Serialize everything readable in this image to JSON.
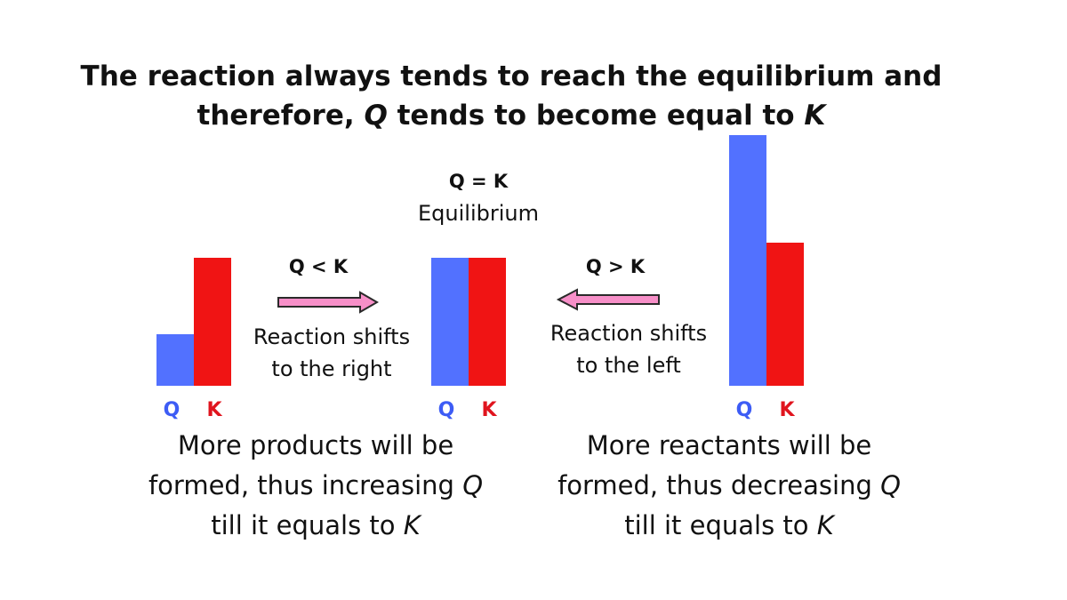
{
  "title": {
    "line1": "The reaction always tends to reach the equilibrium and",
    "line2_prefix": "therefore, ",
    "line2_q": "Q",
    "line2_mid": " tends to become equal to ",
    "line2_k": "K"
  },
  "colors": {
    "q_bar": "#5271ff",
    "k_bar": "#f01414",
    "arrow_fill": "#f78fc8",
    "arrow_stroke": "#2a2a2a",
    "q_label": "#3d5cf5",
    "k_label": "#e0141e"
  },
  "chart_data": [
    {
      "type": "bar",
      "categories": [
        "Q",
        "K"
      ],
      "values": [
        1,
        2.5
      ],
      "title": "",
      "xlabel": "",
      "ylabel": "",
      "ylim": [
        0,
        4.9
      ]
    },
    {
      "type": "bar",
      "categories": [
        "Q",
        "K"
      ],
      "values": [
        2.5,
        2.5
      ],
      "title": "Q = K",
      "subtitle": "Equilibrium",
      "xlabel": "",
      "ylabel": "",
      "ylim": [
        0,
        4.9
      ]
    },
    {
      "type": "bar",
      "categories": [
        "Q",
        "K"
      ],
      "values": [
        4.9,
        2.8
      ],
      "title": "",
      "xlabel": "",
      "ylabel": "",
      "ylim": [
        0,
        4.9
      ]
    }
  ],
  "equilibrium": {
    "condition": "Q = K",
    "label": "Equilibrium"
  },
  "left_arrow": {
    "condition": "Q < K",
    "direction": "right",
    "shift_line1": "Reaction shifts",
    "shift_line2": "to the right"
  },
  "right_arrow": {
    "condition": "Q > K",
    "direction": "left",
    "shift_line1": "Reaction shifts",
    "shift_line2": "to the left"
  },
  "bar_labels": {
    "q": "Q",
    "k": "K"
  },
  "caption_left": {
    "line1": "More products will be",
    "line2_prefix": "formed, thus increasing ",
    "line2_var": "Q",
    "line3_prefix": "till it equals to ",
    "line3_var": "K"
  },
  "caption_right": {
    "line1": "More reactants will be",
    "line2_prefix": "formed, thus decreasing ",
    "line2_var": "Q",
    "line3_prefix": "till it equals to ",
    "line3_var": "K"
  }
}
